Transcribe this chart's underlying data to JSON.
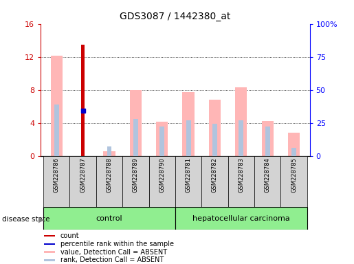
{
  "title": "GDS3087 / 1442380_at",
  "samples": [
    "GSM228786",
    "GSM228787",
    "GSM228788",
    "GSM228789",
    "GSM228790",
    "GSM228781",
    "GSM228782",
    "GSM228783",
    "GSM228784",
    "GSM228785"
  ],
  "value_absent": [
    12.1,
    0.0,
    0.55,
    8.0,
    4.1,
    7.7,
    6.8,
    8.3,
    4.2,
    2.8
  ],
  "rank_absent_pct": [
    39,
    0.0,
    7,
    28,
    22,
    27,
    24,
    27,
    22,
    6
  ],
  "count_val": [
    0,
    13.5,
    0,
    0,
    0,
    0,
    0,
    0,
    0,
    0
  ],
  "percentile_rank_left": [
    0,
    5.5,
    0,
    0,
    0,
    0,
    0,
    0,
    0,
    0
  ],
  "ylim_left": [
    0,
    16
  ],
  "ylim_right": [
    0,
    100
  ],
  "yticks_left": [
    0,
    4,
    8,
    12,
    16
  ],
  "ytick_labels_left": [
    "0",
    "4",
    "8",
    "12",
    "16"
  ],
  "ytick_labels_right": [
    "0",
    "25",
    "50",
    "75",
    "100%"
  ],
  "ytick_vals_right": [
    0,
    25,
    50,
    75,
    100
  ],
  "color_count": "#cc0000",
  "color_percentile": "#0000cc",
  "color_value_absent": "#ffb6b6",
  "color_rank_absent": "#b0c4de",
  "light_green": "#90EE90",
  "gray_sample": "#d3d3d3",
  "legend_items": [
    {
      "color": "#cc0000",
      "label": "count"
    },
    {
      "color": "#0000cc",
      "label": "percentile rank within the sample"
    },
    {
      "color": "#ffb6b6",
      "label": "value, Detection Call = ABSENT"
    },
    {
      "color": "#b0c4de",
      "label": "rank, Detection Call = ABSENT"
    }
  ]
}
